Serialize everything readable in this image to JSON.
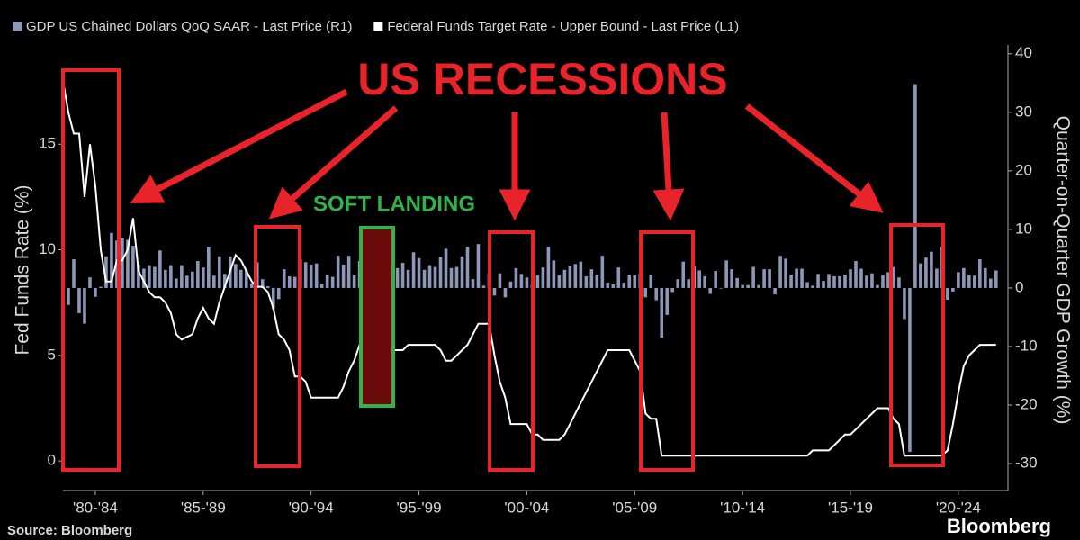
{
  "chart_data": {
    "type": "bar_line",
    "y_label": "Fed Funds Rate (%)",
    "y2_label": "Quarter-on-Quarter GDP Growth (%)",
    "source": "Source: Bloomberg",
    "brand": "Bloomberg",
    "annotations": [
      "US RECESSIONS",
      "SOFT LANDING"
    ],
    "xlim": [
      1981,
      2024.8
    ],
    "xticks": [
      {
        "value": 1982.5,
        "label": "'80-'84"
      },
      {
        "value": 1987.5,
        "label": "'85-'89"
      },
      {
        "value": 1992.5,
        "label": "'90-'94"
      },
      {
        "value": 1997.5,
        "label": "'95-'99"
      },
      {
        "value": 2002.5,
        "label": "'00-'04"
      },
      {
        "value": 2007.5,
        "label": "'05-'09"
      },
      {
        "value": 2012.5,
        "label": "'10-'14"
      },
      {
        "value": 2017.5,
        "label": "'15-'19"
      },
      {
        "value": 2022.5,
        "label": "'20-'24"
      }
    ],
    "ylim": [
      -1.4,
      19.7
    ],
    "yticks": [
      0,
      5,
      10,
      15
    ],
    "y2lim": [
      -34.6,
      41.5
    ],
    "y2ticks": [
      -30,
      -20,
      -10,
      0,
      10,
      20,
      30,
      40
    ],
    "x": [
      1981,
      1981.25,
      1981.5,
      1981.75,
      1982,
      1982.25,
      1982.5,
      1982.75,
      1983,
      1983.25,
      1983.5,
      1983.75,
      1984,
      1984.25,
      1984.5,
      1984.75,
      1985,
      1985.25,
      1985.5,
      1985.75,
      1986,
      1986.25,
      1986.5,
      1986.75,
      1987,
      1987.25,
      1987.5,
      1987.75,
      1988,
      1988.25,
      1988.5,
      1988.75,
      1989,
      1989.25,
      1989.5,
      1989.75,
      1990,
      1990.25,
      1990.5,
      1990.75,
      1991,
      1991.25,
      1991.5,
      1991.75,
      1992,
      1992.25,
      1992.5,
      1992.75,
      1993,
      1993.25,
      1993.5,
      1993.75,
      1994,
      1994.25,
      1994.5,
      1994.75,
      1995,
      1995.25,
      1995.5,
      1995.75,
      1996,
      1996.25,
      1996.5,
      1996.75,
      1997,
      1997.25,
      1997.5,
      1997.75,
      1998,
      1998.25,
      1998.5,
      1998.75,
      1999,
      1999.25,
      1999.5,
      1999.75,
      2000,
      2000.25,
      2000.5,
      2000.75,
      2001,
      2001.25,
      2001.5,
      2001.75,
      2002,
      2002.25,
      2002.5,
      2002.75,
      2003,
      2003.25,
      2003.5,
      2003.75,
      2004,
      2004.25,
      2004.5,
      2004.75,
      2005,
      2005.25,
      2005.5,
      2005.75,
      2006,
      2006.25,
      2006.5,
      2006.75,
      2007,
      2007.25,
      2007.5,
      2007.75,
      2008,
      2008.25,
      2008.5,
      2008.75,
      2009,
      2009.25,
      2009.5,
      2009.75,
      2010,
      2010.25,
      2010.5,
      2010.75,
      2011,
      2011.25,
      2011.5,
      2011.75,
      2012,
      2012.25,
      2012.5,
      2012.75,
      2013,
      2013.25,
      2013.5,
      2013.75,
      2014,
      2014.25,
      2014.5,
      2014.75,
      2015,
      2015.25,
      2015.5,
      2015.75,
      2016,
      2016.25,
      2016.5,
      2016.75,
      2017,
      2017.25,
      2017.5,
      2017.75,
      2018,
      2018.25,
      2018.5,
      2018.75,
      2019,
      2019.25,
      2019.5,
      2019.75,
      2020,
      2020.25,
      2020.5,
      2020.75,
      2021,
      2021.25,
      2021.5,
      2021.75,
      2022,
      2022.25,
      2022.5,
      2022.75,
      2023,
      2023.25,
      2023.5,
      2023.75,
      2024,
      2024.25
    ],
    "series": [
      {
        "name": "GDP US Chained Dollars QoQ SAAR - Last Price (R1)",
        "color": "#8d97b8",
        "axis": "y2",
        "kind": "bar",
        "values": [
          8.1,
          -2.9,
          4.9,
          -4.3,
          -6.1,
          1.8,
          -1.5,
          0.2,
          5.4,
          9.4,
          8.1,
          8.5,
          8.2,
          7.2,
          4.0,
          3.3,
          3.9,
          3.6,
          6.4,
          3.1,
          3.9,
          1.6,
          3.9,
          2.1,
          2.8,
          4.6,
          3.5,
          7.0,
          2.1,
          5.4,
          2.4,
          5.4,
          4.1,
          3.1,
          3.0,
          0.8,
          4.4,
          1.5,
          0.3,
          -3.6,
          -1.9,
          3.2,
          2.0,
          1.9,
          4.9,
          4.4,
          4.0,
          4.2,
          0.7,
          2.3,
          1.9,
          5.5,
          4.0,
          5.5,
          2.3,
          4.6,
          1.3,
          0.9,
          3.2,
          3.0,
          2.9,
          6.7,
          3.4,
          4.3,
          3.1,
          6.1,
          5.1,
          3.1,
          3.9,
          3.6,
          5.3,
          6.7,
          3.4,
          3.6,
          5.4,
          7.0,
          1.5,
          7.5,
          0.4,
          2.4,
          -1.3,
          2.5,
          -1.6,
          1.1,
          3.4,
          2.4,
          1.8,
          0.6,
          2.2,
          3.5,
          7.0,
          4.7,
          2.2,
          3.1,
          3.8,
          4.1,
          4.5,
          2.0,
          3.2,
          2.3,
          5.5,
          0.9,
          0.6,
          3.5,
          0.9,
          2.3,
          2.2,
          2.5,
          -1.6,
          2.3,
          -2.1,
          -8.5,
          -4.6,
          -0.7,
          1.5,
          4.5,
          1.5,
          3.7,
          3.0,
          2.0,
          -1.0,
          2.9,
          -0.1,
          4.7,
          3.2,
          1.7,
          0.5,
          0.5,
          3.6,
          0.5,
          3.2,
          3.2,
          -1.1,
          5.5,
          5.0,
          2.3,
          3.3,
          3.3,
          1.0,
          0.4,
          2.4,
          1.2,
          2.4,
          2.0,
          2.0,
          2.3,
          3.2,
          4.6,
          3.3,
          2.1,
          2.5,
          0.5,
          2.2,
          2.7,
          3.6,
          1.8,
          -5.3,
          -28.0,
          34.8,
          4.2,
          5.2,
          6.2,
          3.3,
          7.0,
          -2.0,
          -0.6,
          2.7,
          3.4,
          2.2,
          2.1,
          4.9,
          3.4,
          1.6,
          3.0
        ]
      },
      {
        "name": "Federal Funds Target Rate - Upper Bound - Last Price (L1)",
        "color": "#ffffff",
        "axis": "y",
        "kind": "line",
        "values": [
          18,
          16.5,
          15.5,
          15.5,
          12.5,
          15,
          13,
          10,
          8.5,
          8.5,
          9.5,
          9.5,
          10,
          11.5,
          9,
          8.5,
          8,
          7.75,
          7.75,
          7.5,
          7,
          6,
          5.75,
          5.875,
          6,
          6.75,
          7.25,
          6.75,
          6.5,
          7.5,
          8.25,
          9,
          9.75,
          9.5,
          9,
          8.5,
          8.25,
          8.25,
          8,
          7.25,
          6,
          5.75,
          5.25,
          4,
          4,
          3.75,
          3,
          3,
          3,
          3,
          3,
          3,
          3.5,
          4.25,
          4.75,
          5.5,
          6,
          6,
          5.75,
          5.5,
          5.25,
          5.25,
          5.25,
          5.25,
          5.5,
          5.5,
          5.5,
          5.5,
          5.5,
          5.5,
          5.25,
          4.75,
          4.75,
          5,
          5.25,
          5.5,
          6,
          6.5,
          6.5,
          6.5,
          5,
          3.75,
          3,
          1.75,
          1.75,
          1.75,
          1.75,
          1.25,
          1.25,
          1,
          1,
          1,
          1,
          1.25,
          1.75,
          2.25,
          2.75,
          3.25,
          3.75,
          4.25,
          4.75,
          5.25,
          5.25,
          5.25,
          5.25,
          5.25,
          4.75,
          4.25,
          2.25,
          2,
          2,
          0.25,
          0.25,
          0.25,
          0.25,
          0.25,
          0.25,
          0.25,
          0.25,
          0.25,
          0.25,
          0.25,
          0.25,
          0.25,
          0.25,
          0.25,
          0.25,
          0.25,
          0.25,
          0.25,
          0.25,
          0.25,
          0.25,
          0.25,
          0.25,
          0.25,
          0.25,
          0.25,
          0.25,
          0.5,
          0.5,
          0.5,
          0.5,
          0.75,
          1,
          1.25,
          1.25,
          1.5,
          1.75,
          2,
          2.25,
          2.5,
          2.5,
          2.5,
          2,
          1.75,
          0.25,
          0.25,
          0.25,
          0.25,
          0.25,
          0.25,
          0.25,
          0.25,
          0.5,
          1.75,
          3.25,
          4.5,
          5,
          5.25,
          5.5,
          5.5,
          5.5,
          5.5
        ]
      }
    ]
  }
}
